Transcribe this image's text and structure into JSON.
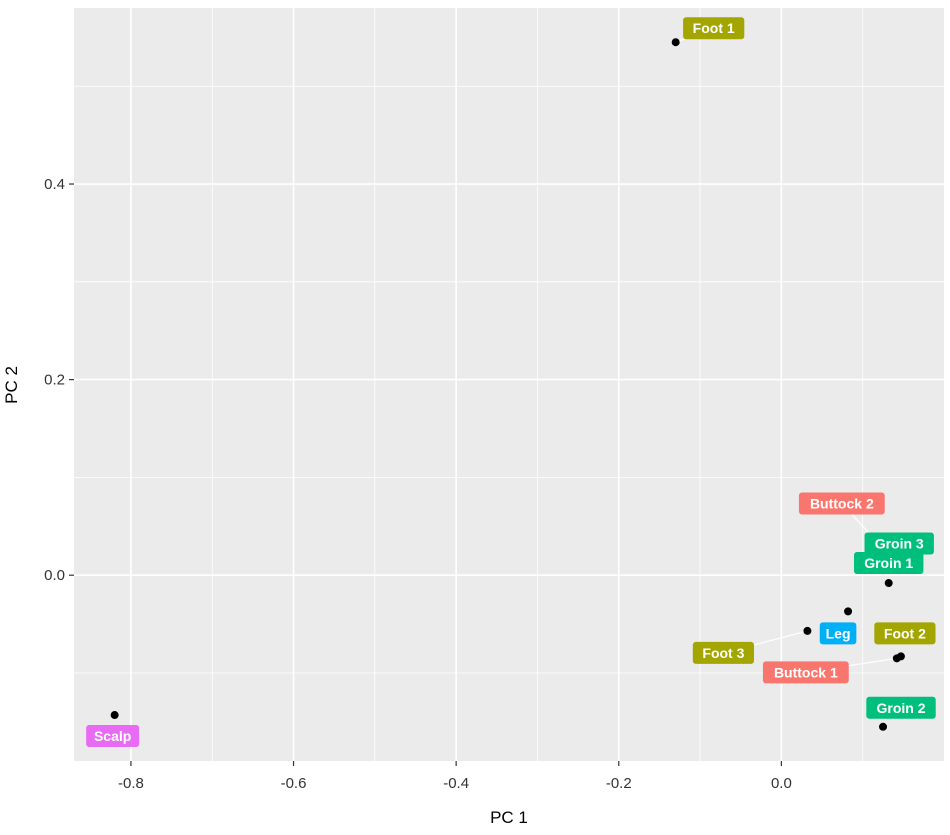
{
  "chart_data": {
    "type": "scatter",
    "xlabel": "PC 1",
    "ylabel": "PC 2",
    "xlim": [
      -0.87,
      0.2
    ],
    "ylim": [
      -0.19,
      0.58
    ],
    "x_ticks": [
      -0.8,
      -0.6,
      -0.4,
      -0.2,
      0.0
    ],
    "x_tick_labels": [
      "-0.8",
      "-0.6",
      "-0.4",
      "-0.2",
      "0.0"
    ],
    "y_ticks": [
      0.0,
      0.2,
      0.4
    ],
    "y_tick_labels": [
      "0.0",
      "0.2",
      "0.4"
    ],
    "grid": true,
    "background": "#ebebeb",
    "point_color": "#000000",
    "groups": {
      "Buttock": "#f8766d",
      "Foot": "#a3a500",
      "Groin": "#00bf7d",
      "Leg": "#00b0f6",
      "Scalp": "#e76bf3"
    },
    "points": [
      {
        "label": "Foot 1",
        "group": "Foot",
        "x": -0.13,
        "y": 0.545
      },
      {
        "label": "Scalp",
        "group": "Scalp",
        "x": -0.82,
        "y": -0.143
      },
      {
        "label": "Buttock 2",
        "group": "Buttock",
        "x": 0.142,
        "y": 0.012
      },
      {
        "label": "Groin 3",
        "group": "Groin",
        "x": 0.14,
        "y": 0.013
      },
      {
        "label": "Groin 1",
        "group": "Groin",
        "x": 0.132,
        "y": -0.008
      },
      {
        "label": "Leg",
        "group": "Leg",
        "x": 0.082,
        "y": -0.037
      },
      {
        "label": "Foot 3",
        "group": "Foot",
        "x": 0.032,
        "y": -0.057
      },
      {
        "label": "Foot 2",
        "group": "Foot",
        "x": 0.147,
        "y": -0.083
      },
      {
        "label": "Buttock 1",
        "group": "Buttock",
        "x": 0.142,
        "y": -0.085
      },
      {
        "label": "Groin 2",
        "group": "Groin",
        "x": 0.125,
        "y": -0.155
      }
    ]
  }
}
